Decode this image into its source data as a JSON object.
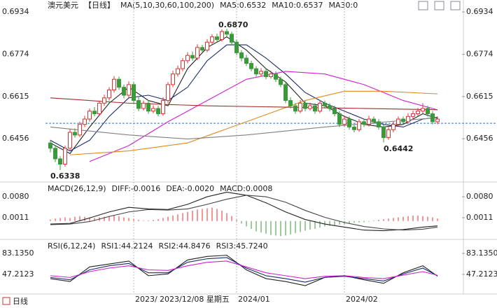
{
  "chart_data": [
    {
      "type": "candlestick",
      "title": "澳元美元",
      "subtitle": "【日线】",
      "subtitle_color": "#e07000",
      "indicator": "MA(5,10,30,60,100,200)",
      "categories": [
        null,
        null,
        null,
        null,
        null,
        null,
        null,
        null,
        null,
        null,
        null,
        null,
        null,
        null,
        null,
        null,
        null,
        "2023/",
        null,
        null,
        null,
        null,
        null,
        null,
        null,
        null,
        null,
        null,
        null,
        null,
        null,
        null,
        null,
        null,
        null,
        null,
        null,
        null,
        "2024/01",
        null,
        null,
        null,
        null,
        null,
        null,
        null,
        null,
        null,
        null,
        null,
        null,
        null,
        null,
        null,
        null,
        null,
        null,
        null,
        null,
        null,
        "2024/02",
        null,
        null,
        null,
        null,
        null,
        null,
        null,
        null,
        null,
        null,
        null,
        null,
        null,
        null,
        null,
        null,
        null,
        null,
        null
      ],
      "cursor_label": "2023/12/08 星期五",
      "cursor_color": "#e08000",
      "open": [
        0.644,
        0.642,
        0.638,
        0.636,
        0.642,
        0.648,
        0.647,
        0.651,
        0.653,
        0.656,
        0.655,
        0.659,
        0.661,
        0.664,
        0.668,
        0.665,
        0.662,
        0.666,
        0.66,
        0.657,
        0.659,
        0.656,
        0.657,
        0.655,
        0.66,
        0.666,
        0.67,
        0.672,
        0.675,
        0.677,
        0.676,
        0.68,
        0.679,
        0.682,
        0.684,
        0.683,
        0.686,
        0.685,
        0.682,
        0.678,
        0.676,
        0.674,
        0.672,
        0.67,
        0.671,
        0.669,
        0.67,
        0.668,
        0.666,
        0.66,
        0.658,
        0.656,
        0.659,
        0.657,
        0.658,
        0.656,
        0.659,
        0.658,
        0.657,
        0.655,
        0.651,
        0.653,
        0.65,
        0.649,
        0.652,
        0.651,
        0.653,
        0.652,
        0.65,
        0.646,
        0.649,
        0.651,
        0.653,
        0.652,
        0.654,
        0.655,
        0.656,
        0.657,
        0.655,
        0.652
      ],
      "high": [
        0.6452,
        0.643,
        0.639,
        0.643,
        0.6492,
        0.6495,
        0.652,
        0.6542,
        0.657,
        0.6575,
        0.66,
        0.6622,
        0.665,
        0.6692,
        0.669,
        0.666,
        0.6672,
        0.667,
        0.6612,
        0.66,
        0.6602,
        0.6582,
        0.658,
        0.6612,
        0.667,
        0.6712,
        0.6732,
        0.676,
        0.6782,
        0.6785,
        0.6812,
        0.681,
        0.6832,
        0.685,
        0.6852,
        0.6868,
        0.687,
        0.686,
        0.683,
        0.679,
        0.6772,
        0.675,
        0.673,
        0.6722,
        0.672,
        0.6712,
        0.671,
        0.669,
        0.667,
        0.6612,
        0.659,
        0.6602,
        0.66,
        0.6592,
        0.659,
        0.6602,
        0.66,
        0.659,
        0.658,
        0.656,
        0.6542,
        0.654,
        0.651,
        0.653,
        0.653,
        0.6542,
        0.654,
        0.653,
        0.651,
        0.65,
        0.6522,
        0.654,
        0.654,
        0.6552,
        0.6562,
        0.6572,
        0.659,
        0.658,
        0.656,
        0.654
      ],
      "low": [
        0.6405,
        0.6368,
        0.6338,
        0.635,
        0.641,
        0.646,
        0.6462,
        0.65,
        0.652,
        0.654,
        0.6542,
        0.658,
        0.66,
        0.663,
        0.664,
        0.6608,
        0.661,
        0.659,
        0.656,
        0.6562,
        0.655,
        0.6552,
        0.654,
        0.6542,
        0.659,
        0.665,
        0.669,
        0.671,
        0.674,
        0.675,
        0.6752,
        0.678,
        0.6782,
        0.681,
        0.682,
        0.6822,
        0.684,
        0.681,
        0.677,
        0.6748,
        0.673,
        0.671,
        0.669,
        0.6692,
        0.668,
        0.6682,
        0.667,
        0.665,
        0.659,
        0.657,
        0.655,
        0.6552,
        0.656,
        0.6562,
        0.655,
        0.6552,
        0.657,
        0.656,
        0.654,
        0.65,
        0.6502,
        0.649,
        0.648,
        0.6482,
        0.65,
        0.6502,
        0.651,
        0.649,
        0.6442,
        0.6452,
        0.648,
        0.6502,
        0.651,
        0.6512,
        0.653,
        0.6542,
        0.6552,
        0.654,
        0.651,
        0.651
      ],
      "close": [
        0.642,
        0.638,
        0.636,
        0.642,
        0.648,
        0.647,
        0.651,
        0.653,
        0.656,
        0.655,
        0.659,
        0.661,
        0.664,
        0.668,
        0.665,
        0.662,
        0.666,
        0.66,
        0.657,
        0.659,
        0.656,
        0.657,
        0.655,
        0.66,
        0.666,
        0.67,
        0.672,
        0.675,
        0.677,
        0.676,
        0.68,
        0.679,
        0.682,
        0.684,
        0.683,
        0.686,
        0.685,
        0.682,
        0.678,
        0.676,
        0.674,
        0.672,
        0.67,
        0.671,
        0.669,
        0.67,
        0.668,
        0.666,
        0.66,
        0.658,
        0.656,
        0.659,
        0.657,
        0.658,
        0.656,
        0.659,
        0.658,
        0.657,
        0.655,
        0.651,
        0.653,
        0.65,
        0.649,
        0.652,
        0.651,
        0.653,
        0.652,
        0.65,
        0.646,
        0.649,
        0.651,
        0.653,
        0.652,
        0.654,
        0.655,
        0.656,
        0.657,
        0.655,
        0.652,
        0.653
      ],
      "up_color": "#e03030",
      "down_color": "#3a9a3a",
      "series": [
        {
          "label": "MA5:0.6532",
          "color": "#222222",
          "x": [
            0,
            4,
            8,
            12,
            16,
            20,
            24,
            28,
            32,
            36,
            40,
            44,
            48,
            52,
            56,
            60,
            64,
            68,
            72,
            76,
            79
          ],
          "values": [
            0.644,
            0.64,
            0.65,
            0.659,
            0.665,
            0.66,
            0.658,
            0.672,
            0.68,
            0.684,
            0.679,
            0.672,
            0.667,
            0.659,
            0.658,
            0.654,
            0.651,
            0.65,
            0.651,
            0.655,
            0.6532
          ]
        },
        {
          "label": "MA10:0.6537",
          "color": "#1a2a6c",
          "x": [
            0,
            4,
            8,
            12,
            16,
            20,
            24,
            28,
            32,
            36,
            40,
            44,
            48,
            52,
            56,
            60,
            64,
            68,
            72,
            76,
            79
          ],
          "values": [
            0.645,
            0.641,
            0.645,
            0.654,
            0.661,
            0.662,
            0.66,
            0.665,
            0.675,
            0.681,
            0.681,
            0.676,
            0.67,
            0.663,
            0.659,
            0.656,
            0.653,
            0.651,
            0.65,
            0.653,
            0.6537
          ]
        },
        {
          "label": "MA30:0",
          "color": "#d020d0",
          "x": [
            8,
            16,
            24,
            32,
            40,
            48,
            56,
            64,
            72,
            79
          ],
          "values": [
            0.637,
            0.643,
            0.652,
            0.66,
            0.668,
            0.671,
            0.67,
            0.666,
            0.66,
            0.6565
          ]
        },
        {
          "color": "#e08a1e",
          "x": [
            4,
            16,
            28,
            40,
            52,
            60,
            68,
            79
          ],
          "values": [
            0.6395,
            0.641,
            0.644,
            0.652,
            0.66,
            0.6635,
            0.6635,
            0.6625
          ]
        },
        {
          "color": "#a0302a",
          "x": [
            0,
            16,
            32,
            48,
            64,
            79
          ],
          "values": [
            0.661,
            0.659,
            0.658,
            0.6575,
            0.657,
            0.6565
          ]
        },
        {
          "color": "#808080",
          "x": [
            0,
            16,
            28,
            40,
            56,
            72,
            79
          ],
          "values": [
            0.65,
            0.647,
            0.6455,
            0.647,
            0.65,
            0.6525,
            0.6535
          ]
        }
      ],
      "price_line": 0.6514,
      "price_line_color": "#3070d0",
      "annotations": [
        {
          "text": "0.6870",
          "color": "#e03030"
        },
        {
          "text": "0.6338",
          "color": "#3a9a3a"
        },
        {
          "text": "0.6442",
          "color": "#3a9a3a"
        }
      ],
      "ylim": [
        0.6298,
        0.6979
      ],
      "yticks": [
        0.6934,
        0.6774,
        0.6615,
        0.6456
      ]
    },
    {
      "type": "macd",
      "title": "MACD(26,12,9)",
      "values": [
        0.0005,
        0.0008,
        0.001,
        0.0012,
        0.001,
        0.0014,
        0.0016,
        0.0014,
        0.0012,
        0.001,
        0.0012,
        0.0014,
        0.0016,
        0.0018,
        0.0016,
        0.0012,
        0.001,
        0.0006,
        0.0004,
        0.0002,
        0.0002,
        0.0004,
        0.0006,
        0.001,
        0.0014,
        0.0018,
        0.0022,
        0.0026,
        0.003,
        0.0034,
        0.0038,
        0.004,
        0.0042,
        0.0044,
        0.004,
        0.0034,
        0.0026,
        0.0016,
        0.0004,
        -0.0008,
        -0.0018,
        -0.0026,
        -0.0034,
        -0.0038,
        -0.0042,
        -0.0046,
        -0.0048,
        -0.005,
        -0.0048,
        -0.0044,
        -0.004,
        -0.0036,
        -0.0032,
        -0.0028,
        -0.0026,
        -0.0022,
        -0.0018,
        -0.0016,
        -0.0014,
        -0.0012,
        -0.001,
        -0.0008,
        -0.0006,
        -0.0005,
        -0.0004,
        -0.0002,
        0.0002,
        0.0004,
        0.0006,
        0.0008,
        0.001,
        0.0012,
        0.0014,
        0.0016,
        0.0018,
        0.0018,
        0.0016,
        0.0014,
        0.0012,
        0.0008
      ],
      "up_color": "#e03030",
      "down_color": "#3a9a3a",
      "series": [
        {
          "label": "DIFF:-0.0016",
          "color": "#222222",
          "x": [
            0,
            4,
            8,
            12,
            16,
            20,
            24,
            28,
            32,
            36,
            40,
            44,
            48,
            52,
            56,
            60,
            64,
            68,
            72,
            76,
            79
          ],
          "values": [
            -0.001,
            -0.0008,
            0.001,
            0.003,
            0.0045,
            0.004,
            0.0038,
            0.0055,
            0.008,
            0.0095,
            0.0085,
            0.006,
            0.003,
            0.0005,
            -0.001,
            -0.002,
            -0.003,
            -0.0032,
            -0.0028,
            -0.002,
            -0.0016
          ]
        },
        {
          "label": "DEA:-0.0020",
          "color": "#444444",
          "x": [
            0,
            4,
            8,
            12,
            16,
            20,
            24,
            28,
            32,
            36,
            40,
            44,
            48,
            52,
            56,
            60,
            64,
            68,
            72,
            76,
            79
          ],
          "values": [
            -0.0012,
            -0.001,
            -0.0002,
            0.0015,
            0.003,
            0.0038,
            0.0036,
            0.004,
            0.0055,
            0.0072,
            0.0085,
            0.008,
            0.0062,
            0.0035,
            0.0012,
            -0.0005,
            -0.0018,
            -0.0026,
            -0.003,
            -0.0027,
            -0.002
          ]
        }
      ],
      "histogram_label": "MACD:0.0008",
      "histogram_label_color": "#d020d0",
      "ylim": [
        -0.0056,
        0.0124
      ],
      "yticks": [
        {
          "value": 0.008,
          "label": "0.0080"
        },
        0.0011
      ]
    },
    {
      "type": "line",
      "title": "RSI(6,12,24)",
      "series": [
        {
          "label": "RSI1:44.2124",
          "color": "#222222",
          "x": [
            0,
            4,
            8,
            12,
            16,
            20,
            24,
            28,
            32,
            36,
            40,
            44,
            48,
            52,
            56,
            60,
            64,
            68,
            72,
            76,
            79
          ],
          "values": [
            40,
            35,
            60,
            65,
            70,
            45,
            48,
            72,
            78,
            80,
            55,
            40,
            35,
            28,
            42,
            45,
            38,
            32,
            50,
            62,
            44.2124
          ]
        },
        {
          "label": "RSI2:44.8476",
          "color": "#1a2a6c",
          "x": [
            0,
            4,
            8,
            12,
            16,
            20,
            24,
            28,
            32,
            36,
            40,
            44,
            48,
            52,
            56,
            60,
            64,
            68,
            72,
            76,
            79
          ],
          "values": [
            42,
            38,
            55,
            62,
            66,
            50,
            50,
            68,
            74,
            76,
            58,
            45,
            40,
            34,
            42,
            44,
            40,
            36,
            48,
            58,
            44.8476
          ]
        },
        {
          "label": "RSI3:45.7240",
          "color": "#d020d0",
          "x": [
            0,
            4,
            8,
            12,
            16,
            20,
            24,
            28,
            32,
            36,
            40,
            44,
            48,
            52,
            56,
            60,
            64,
            68,
            72,
            76,
            79
          ],
          "values": [
            45,
            42,
            52,
            58,
            62,
            55,
            54,
            62,
            68,
            70,
            60,
            50,
            45,
            40,
            44,
            45,
            42,
            40,
            46,
            52,
            45.724
          ]
        }
      ],
      "ylim": [
        16.1,
        103.5
      ],
      "yticks": [
        {
          "value": 83.135,
          "label": "83.1350"
        },
        47.2123
      ]
    }
  ],
  "footer": {
    "period": "日线"
  }
}
